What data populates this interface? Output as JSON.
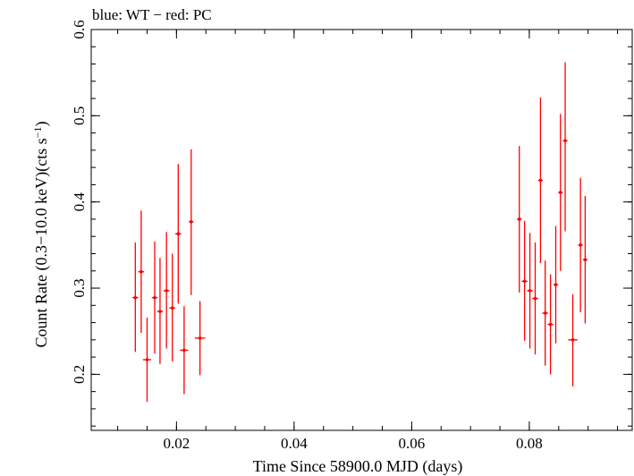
{
  "chart_data": {
    "type": "scatter",
    "title": "blue: WT − red: PC",
    "xlabel": "Time Since 58900.0 MJD (days)",
    "ylabel_main": "Count Rate (0.3−10.0 keV)(cts s",
    "ylabel_sup": "−1",
    "ylabel_close": ")",
    "xlim": [
      0.0055,
      0.0975
    ],
    "ylim": [
      0.135,
      0.6
    ],
    "x_ticks": [
      0.02,
      0.04,
      0.06,
      0.08
    ],
    "x_tick_labels": [
      "0.02",
      "0.04",
      "0.06",
      "0.08"
    ],
    "y_ticks": [
      0.2,
      0.3,
      0.4,
      0.5,
      0.6
    ],
    "y_tick_labels": [
      "0.2",
      "0.3",
      "0.4",
      "0.5",
      "0.6"
    ],
    "grid": false,
    "series": [
      {
        "color": "#ff0000",
        "points": [
          {
            "x": 0.013,
            "y": 0.289,
            "xerr": 0.0005,
            "ylo": 0.226,
            "yhi": 0.353
          },
          {
            "x": 0.014,
            "y": 0.319,
            "xerr": 0.0005,
            "ylo": 0.248,
            "yhi": 0.39
          },
          {
            "x": 0.015,
            "y": 0.217,
            "xerr": 0.0007,
            "ylo": 0.168,
            "yhi": 0.266
          },
          {
            "x": 0.0163,
            "y": 0.289,
            "xerr": 0.0005,
            "ylo": 0.224,
            "yhi": 0.354
          },
          {
            "x": 0.0172,
            "y": 0.273,
            "xerr": 0.0005,
            "ylo": 0.212,
            "yhi": 0.335
          },
          {
            "x": 0.0183,
            "y": 0.297,
            "xerr": 0.0005,
            "ylo": 0.23,
            "yhi": 0.365
          },
          {
            "x": 0.0193,
            "y": 0.277,
            "xerr": 0.0005,
            "ylo": 0.215,
            "yhi": 0.34
          },
          {
            "x": 0.0203,
            "y": 0.363,
            "xerr": 0.0005,
            "ylo": 0.282,
            "yhi": 0.444
          },
          {
            "x": 0.0213,
            "y": 0.228,
            "xerr": 0.0007,
            "ylo": 0.177,
            "yhi": 0.279
          },
          {
            "x": 0.0225,
            "y": 0.377,
            "xerr": 0.0004,
            "ylo": 0.292,
            "yhi": 0.461
          },
          {
            "x": 0.024,
            "y": 0.242,
            "xerr": 0.0009,
            "ylo": 0.199,
            "yhi": 0.285
          },
          {
            "x": 0.0783,
            "y": 0.38,
            "xerr": 0.0004,
            "ylo": 0.295,
            "yhi": 0.465
          },
          {
            "x": 0.0792,
            "y": 0.308,
            "xerr": 0.0005,
            "ylo": 0.239,
            "yhi": 0.378
          },
          {
            "x": 0.0801,
            "y": 0.297,
            "xerr": 0.0005,
            "ylo": 0.23,
            "yhi": 0.364
          },
          {
            "x": 0.081,
            "y": 0.288,
            "xerr": 0.0005,
            "ylo": 0.223,
            "yhi": 0.353
          },
          {
            "x": 0.0819,
            "y": 0.425,
            "xerr": 0.0004,
            "ylo": 0.329,
            "yhi": 0.521
          },
          {
            "x": 0.0827,
            "y": 0.271,
            "xerr": 0.0005,
            "ylo": 0.21,
            "yhi": 0.332
          },
          {
            "x": 0.0836,
            "y": 0.258,
            "xerr": 0.0005,
            "ylo": 0.2,
            "yhi": 0.316
          },
          {
            "x": 0.0845,
            "y": 0.304,
            "xerr": 0.0004,
            "ylo": 0.236,
            "yhi": 0.372
          },
          {
            "x": 0.0853,
            "y": 0.411,
            "xerr": 0.0004,
            "ylo": 0.32,
            "yhi": 0.502
          },
          {
            "x": 0.0861,
            "y": 0.471,
            "xerr": 0.0004,
            "ylo": 0.366,
            "yhi": 0.562
          },
          {
            "x": 0.0874,
            "y": 0.24,
            "xerr": 0.0008,
            "ylo": 0.186,
            "yhi": 0.293
          },
          {
            "x": 0.0887,
            "y": 0.35,
            "xerr": 0.0004,
            "ylo": 0.272,
            "yhi": 0.428
          },
          {
            "x": 0.0895,
            "y": 0.333,
            "xerr": 0.0004,
            "ylo": 0.259,
            "yhi": 0.407
          }
        ]
      }
    ]
  }
}
